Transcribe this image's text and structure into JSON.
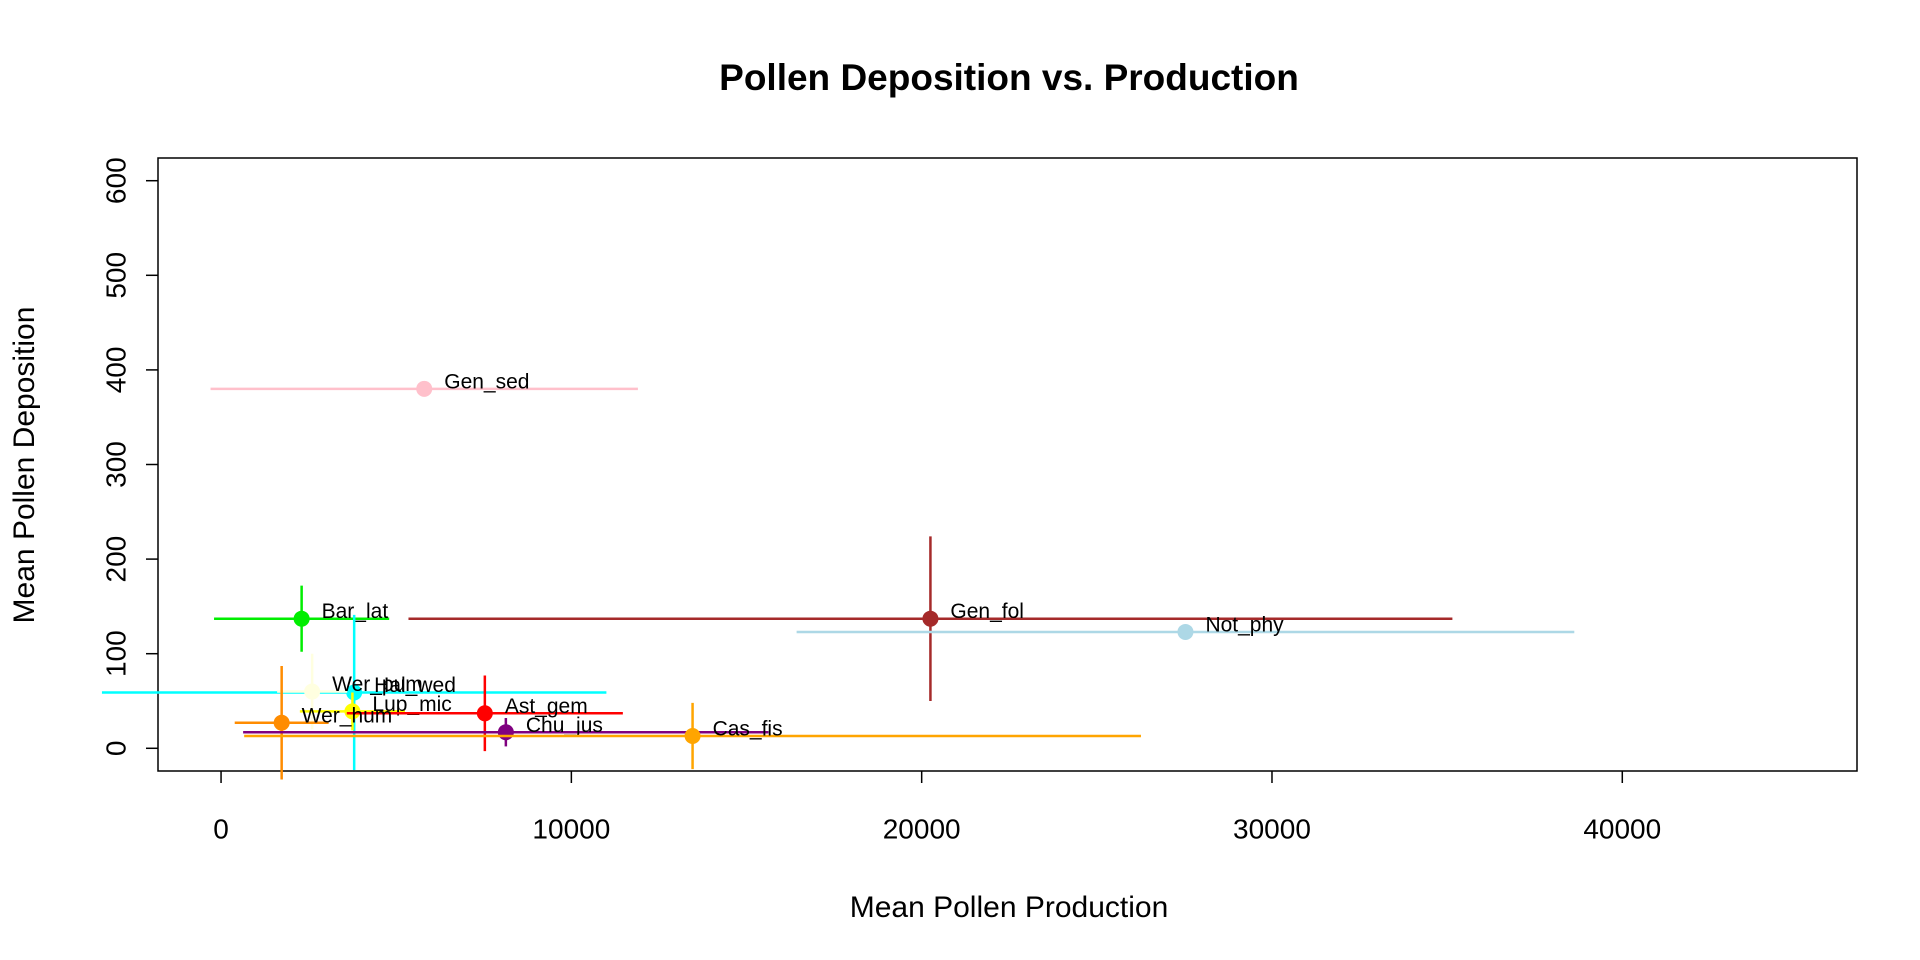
{
  "chart_data": {
    "type": "scatter",
    "title": "Pollen Deposition vs. Production",
    "x_label": "Mean Pollen Production",
    "y_label": "Mean Pollen Deposition",
    "xlim": [
      -1800,
      46700
    ],
    "ylim": [
      -24,
      624
    ],
    "xticks": [
      0,
      10000,
      20000,
      30000,
      40000
    ],
    "yticks": [
      0,
      100,
      200,
      300,
      400,
      500,
      600
    ],
    "grid": false,
    "series": [
      {
        "name": "Gen_sed",
        "color": "pink",
        "x": 5800,
        "y": 380,
        "xerr": 6100,
        "yerr": 0
      },
      {
        "name": "Bar_lat",
        "color": "#00ee00",
        "x": 2300,
        "y": 137,
        "xerr": 2500,
        "yerr": 35
      },
      {
        "name": "Gen_fol",
        "color": "brown",
        "x": 20250,
        "y": 137,
        "xerr": 14900,
        "yerr": 87
      },
      {
        "name": "Not_phy",
        "color": "lightblue",
        "x": 27530,
        "y": 123,
        "xerr": 11100,
        "yerr": 0
      },
      {
        "name": "Hal_wed",
        "color": "cyan",
        "x": 3800,
        "y": 59,
        "xerr": 7200,
        "yerr": 82
      },
      {
        "name": "Wer_pum",
        "color": "lightyellow",
        "x": 2600,
        "y": 60,
        "xerr": 1000,
        "yerr": 40
      },
      {
        "name": "Lup_mic",
        "color": "yellow",
        "x": 3750,
        "y": 39,
        "xerr": 1500,
        "yerr": 20
      },
      {
        "name": "Ast_gem",
        "color": "red",
        "x": 7530,
        "y": 37,
        "xerr": 3940,
        "yerr": 40
      },
      {
        "name": "Wer_hum",
        "color": "darkorange",
        "x": 1730,
        "y": 27,
        "xerr": 1340,
        "yerr": 60
      },
      {
        "name": "Chu_jus",
        "color": "purple",
        "x": 8130,
        "y": 17,
        "xerr": 7500,
        "yerr": 15
      },
      {
        "name": "Cas_fis",
        "color": "orange",
        "x": 13460,
        "y": 13,
        "xerr": 12800,
        "yerr": 35
      }
    ]
  }
}
